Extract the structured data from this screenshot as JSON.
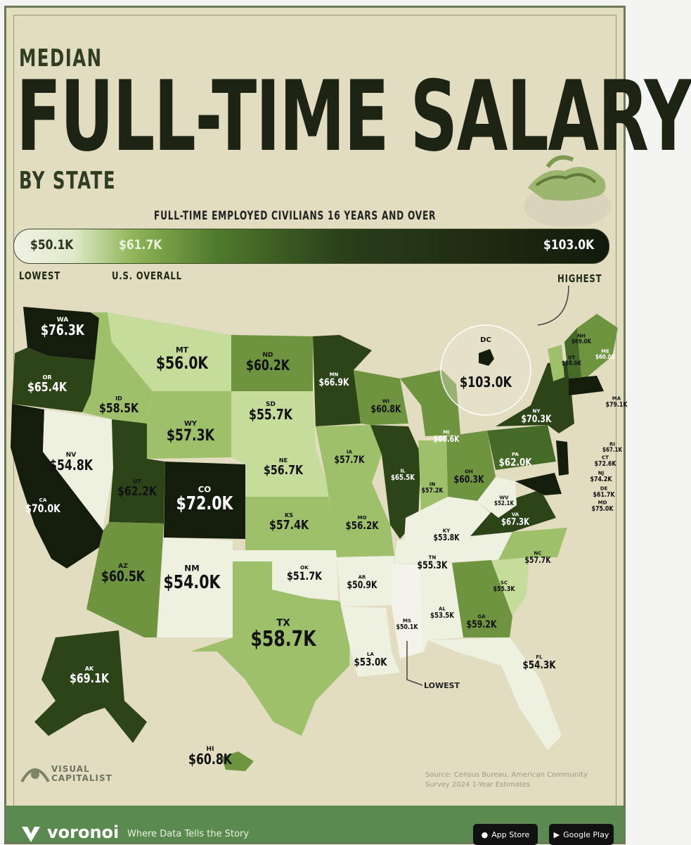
{
  "header": {
    "title_top": "MEDIAN",
    "title_main": "FULL-TIME SALARY",
    "title_sub": "BY STATE",
    "caption": "FULL-TIME EMPLOYED CIVILIANS 16 YEARS AND OVER"
  },
  "scale": {
    "low_value": "$50.1K",
    "us_value": "$61.7K",
    "high_value": "$103.0K",
    "low_label": "LOWEST",
    "us_label": "U.S. OVERALL",
    "high_label": "HIGHEST"
  },
  "colors": {
    "darkest": "#141d0c",
    "dark": "#2d4419",
    "mid_dark": "#456a28",
    "mid": "#6f9440",
    "light": "#9ec06a",
    "lighter": "#c6dc9a",
    "lightest": "#eef0e0",
    "background": "#e2dcc1",
    "footer": "#5a8a4f"
  },
  "map": {
    "dc_code": "DC",
    "dc_value": "$103.0K",
    "lowest_label": "LOWEST",
    "states": [
      {
        "code": "WA",
        "value": "$76.3K"
      },
      {
        "code": "OR",
        "value": "$65.4K"
      },
      {
        "code": "CA",
        "value": "$70.0K"
      },
      {
        "code": "NV",
        "value": "$54.8K"
      },
      {
        "code": "ID",
        "value": "$58.5K"
      },
      {
        "code": "MT",
        "value": "$56.0K"
      },
      {
        "code": "WY",
        "value": "$57.3K"
      },
      {
        "code": "UT",
        "value": "$62.2K"
      },
      {
        "code": "CO",
        "value": "$72.0K"
      },
      {
        "code": "AZ",
        "value": "$60.5K"
      },
      {
        "code": "NM",
        "value": "$54.0K"
      },
      {
        "code": "ND",
        "value": "$60.2K"
      },
      {
        "code": "SD",
        "value": "$55.7K"
      },
      {
        "code": "NE",
        "value": "$56.7K"
      },
      {
        "code": "KS",
        "value": "$57.4K"
      },
      {
        "code": "OK",
        "value": "$51.7K"
      },
      {
        "code": "TX",
        "value": "$58.7K"
      },
      {
        "code": "MN",
        "value": "$66.9K"
      },
      {
        "code": "IA",
        "value": "$57.7K"
      },
      {
        "code": "MO",
        "value": "$56.2K"
      },
      {
        "code": "AR",
        "value": "$50.9K"
      },
      {
        "code": "LA",
        "value": "$53.0K"
      },
      {
        "code": "WI",
        "value": "$60.8K"
      },
      {
        "code": "IL",
        "value": "$65.5K"
      },
      {
        "code": "MI",
        "value": "$60.6K"
      },
      {
        "code": "IN",
        "value": "$57.2K"
      },
      {
        "code": "OH",
        "value": "$60.3K"
      },
      {
        "code": "KY",
        "value": "$53.8K"
      },
      {
        "code": "TN",
        "value": "$55.3K"
      },
      {
        "code": "MS",
        "value": "$50.1K"
      },
      {
        "code": "AL",
        "value": "$53.5K"
      },
      {
        "code": "GA",
        "value": "$59.2K"
      },
      {
        "code": "FL",
        "value": "$54.3K"
      },
      {
        "code": "SC",
        "value": "$55.3K"
      },
      {
        "code": "NC",
        "value": "$57.7K"
      },
      {
        "code": "VA",
        "value": "$67.3K"
      },
      {
        "code": "WV",
        "value": "$52.1K"
      },
      {
        "code": "PA",
        "value": "$62.0K"
      },
      {
        "code": "NY",
        "value": "$70.3K"
      },
      {
        "code": "VT",
        "value": "$58.0K"
      },
      {
        "code": "NH",
        "value": "$69.0K"
      },
      {
        "code": "ME",
        "value": "$60.0K"
      },
      {
        "code": "MA",
        "value": "$79.1K"
      },
      {
        "code": "RI",
        "value": "$67.1K"
      },
      {
        "code": "CT",
        "value": "$72.6K"
      },
      {
        "code": "NJ",
        "value": "$74.2K"
      },
      {
        "code": "DE",
        "value": "$61.7K"
      },
      {
        "code": "MD",
        "value": "$75.0K"
      },
      {
        "code": "AK",
        "value": "$69.1K"
      },
      {
        "code": "HI",
        "value": "$60.8K"
      }
    ]
  },
  "credits": {
    "brand_line1": "VISUAL",
    "brand_line2": "CAPITALIST",
    "source": "Source: Census Bureau, American Community Survey 2024 1-Year Estimates"
  },
  "footer": {
    "brand": "voronoi",
    "tagline": "Where Data Tells the Story",
    "app_store": "App Store",
    "google_play": "Google Play"
  }
}
